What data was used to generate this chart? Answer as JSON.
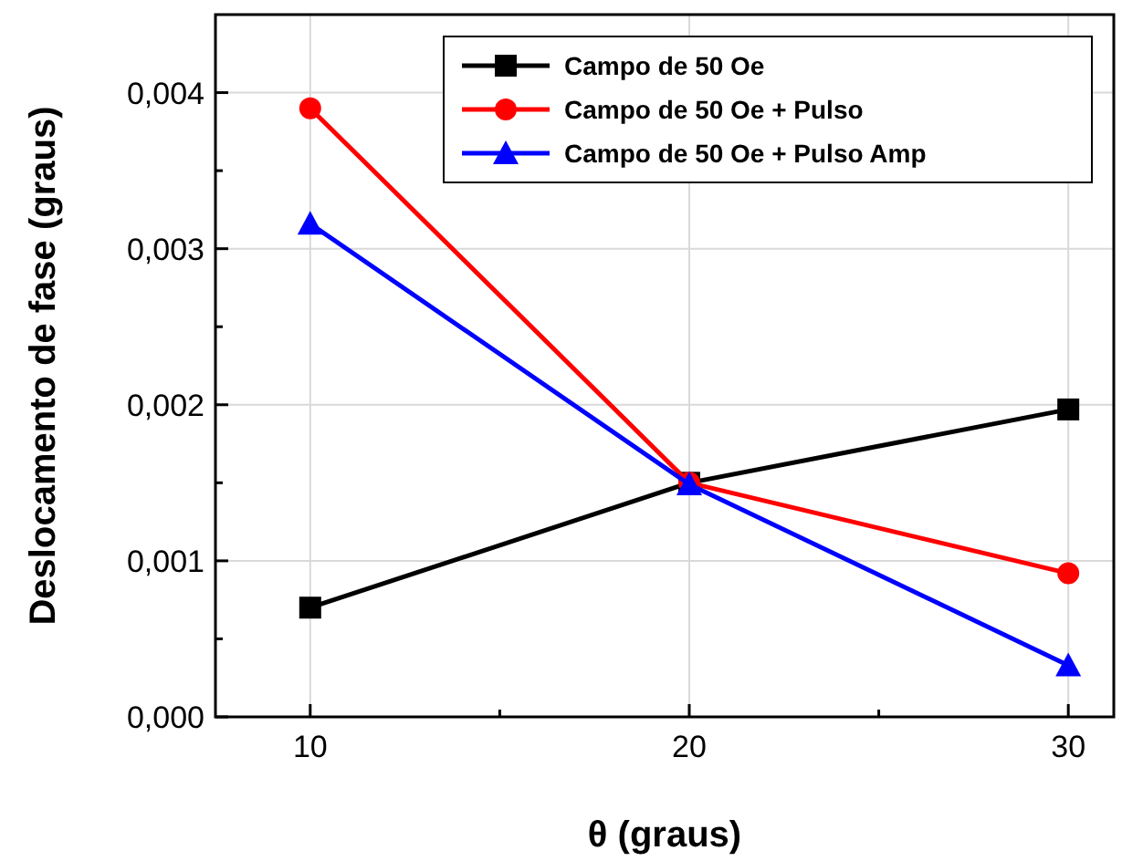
{
  "chart_data": {
    "type": "line",
    "xlabel": "θ (graus)",
    "ylabel": "Deslocamento de fase (graus)",
    "x": [
      10,
      20,
      30
    ],
    "series": [
      {
        "name": "Campo de 50 Oe",
        "color": "#000000",
        "values": [
          0.0007,
          0.0015,
          0.00197
        ],
        "marker": "square"
      },
      {
        "name": "Campo de 50 Oe +  Pulso",
        "color": "#ff0000",
        "values": [
          0.0039,
          0.0015,
          0.00092
        ],
        "marker": "circle"
      },
      {
        "name": "Campo de 50 Oe +  Pulso Amp",
        "color": "#0000ff",
        "values": [
          0.00316,
          0.00149,
          0.00033
        ],
        "marker": "triangle"
      }
    ],
    "xlim": [
      7.5,
      31.2
    ],
    "xticks": [
      10,
      {
        "value": 15,
        "label": null
      },
      20,
      {
        "value": 25,
        "label": null
      },
      30
    ],
    "ylim": [
      0,
      0.0045
    ],
    "yticks": [
      {
        "value": 0,
        "label": "0,000"
      },
      {
        "value": 0.0005,
        "label": null
      },
      {
        "value": 0.001,
        "label": "0,001"
      },
      {
        "value": 0.0015,
        "label": null
      },
      {
        "value": 0.002,
        "label": "0,002"
      },
      {
        "value": 0.0025,
        "label": null
      },
      {
        "value": 0.003,
        "label": "0,003"
      },
      {
        "value": 0.0035,
        "label": null
      },
      {
        "value": 0.004,
        "label": "0,004"
      }
    ],
    "grid": true,
    "legend": "top right",
    "line_style": "solid"
  }
}
